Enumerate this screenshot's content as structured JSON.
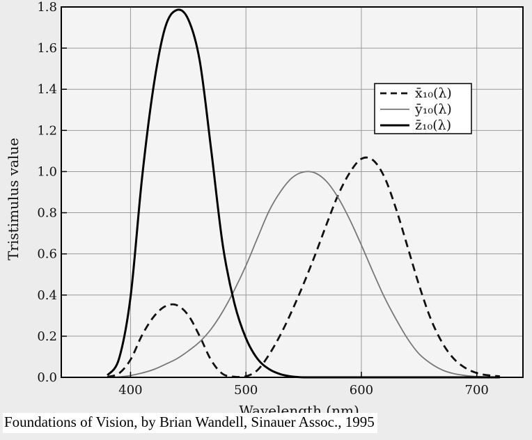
{
  "caption": "Foundations of Vision, by Brian Wandell, Sinauer Assoc., 1995",
  "colors": {
    "background": "#ececec",
    "x_bar": "#111111",
    "y_bar": "#777777",
    "z_bar": "#000000"
  },
  "chart_data": {
    "type": "line",
    "title": "",
    "xlabel": "Wavelength (nm)",
    "ylabel": "Tristimulus value",
    "xlim": [
      340,
      740
    ],
    "ylim": [
      0,
      1.8
    ],
    "x_ticks": [
      400,
      500,
      600,
      700
    ],
    "y_ticks": [
      0.0,
      0.2,
      0.4,
      0.6,
      0.8,
      1.0,
      1.2,
      1.4,
      1.6,
      1.8
    ],
    "grid": true,
    "legend_placement": "top-right",
    "x": [
      380,
      390,
      400,
      410,
      420,
      430,
      440,
      450,
      460,
      470,
      480,
      490,
      500,
      510,
      520,
      530,
      540,
      550,
      560,
      570,
      580,
      590,
      600,
      610,
      620,
      630,
      640,
      650,
      660,
      670,
      680,
      690,
      700,
      710,
      720
    ],
    "series": [
      {
        "name": "x̄₁₀(λ)",
        "style": "dashed",
        "values": [
          0.002,
          0.019,
          0.086,
          0.205,
          0.294,
          0.345,
          0.351,
          0.302,
          0.199,
          0.082,
          0.016,
          0.003,
          0.005,
          0.035,
          0.11,
          0.208,
          0.325,
          0.455,
          0.596,
          0.746,
          0.888,
          0.995,
          1.062,
          1.056,
          0.973,
          0.82,
          0.635,
          0.448,
          0.286,
          0.169,
          0.091,
          0.046,
          0.021,
          0.01,
          0.005
        ]
      },
      {
        "name": "ȳ₁₀(λ)",
        "style": "solid",
        "values": [
          0.0,
          0.002,
          0.009,
          0.021,
          0.038,
          0.063,
          0.09,
          0.128,
          0.173,
          0.236,
          0.321,
          0.425,
          0.543,
          0.677,
          0.808,
          0.903,
          0.97,
          0.998,
          0.993,
          0.951,
          0.872,
          0.766,
          0.643,
          0.513,
          0.389,
          0.283,
          0.188,
          0.114,
          0.068,
          0.036,
          0.018,
          0.009,
          0.004,
          0.002,
          0.001
        ]
      },
      {
        "name": "z̄₁₀(λ)",
        "style": "solid",
        "values": [
          0.01,
          0.09,
          0.39,
          0.97,
          1.415,
          1.7,
          1.785,
          1.74,
          1.537,
          1.1,
          0.64,
          0.36,
          0.19,
          0.09,
          0.04,
          0.015,
          0.004,
          0.0,
          0.0,
          0.0,
          0.0,
          0.0,
          0.0,
          0.0,
          0.0,
          0.0,
          0.0,
          0.0,
          0.0,
          0.0,
          0.0,
          0.0,
          0.0,
          0.0,
          0.0
        ]
      }
    ]
  }
}
